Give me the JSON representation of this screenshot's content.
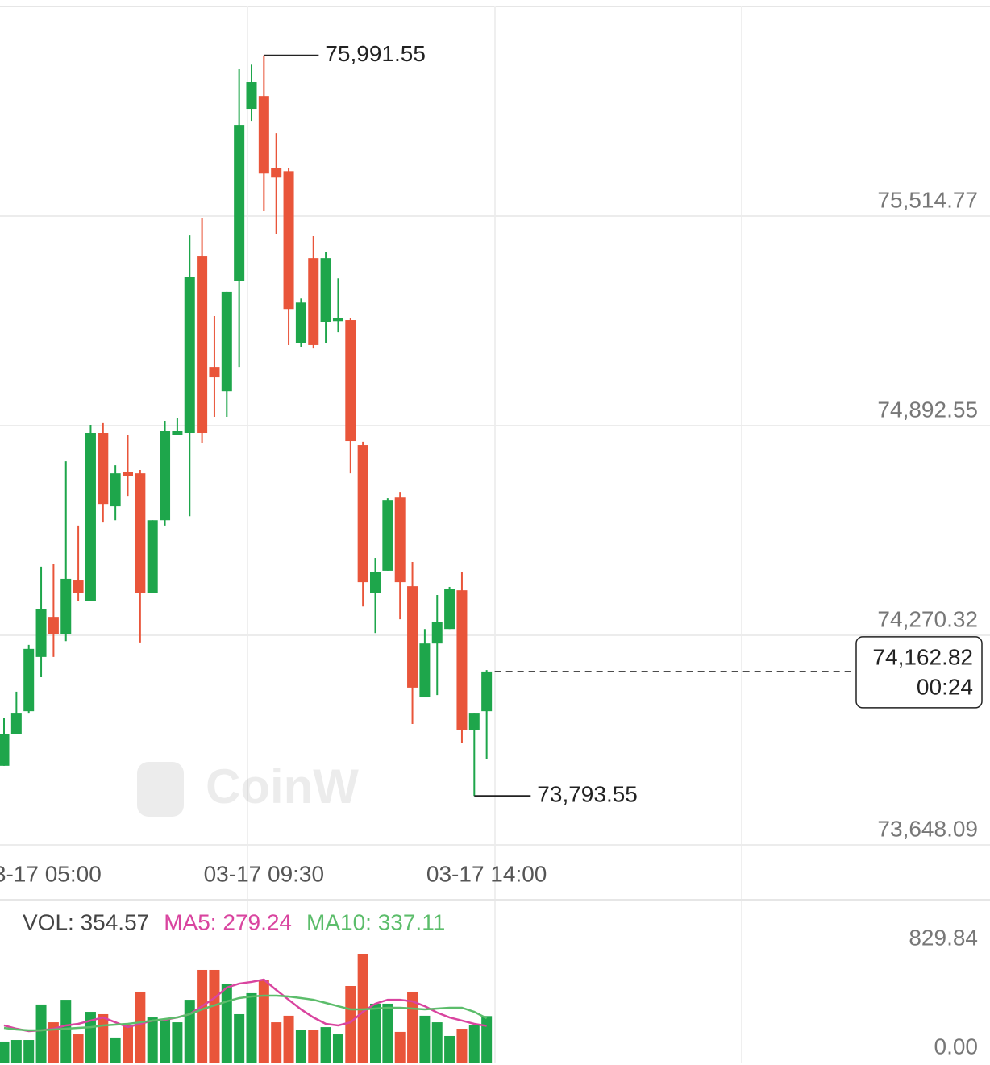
{
  "chart_data": [
    {
      "type": "candlestick",
      "categories": [
        null,
        null,
        null,
        "03-17 05:00",
        null,
        null,
        null,
        null,
        null,
        null,
        null,
        null,
        null,
        null,
        null,
        null,
        null,
        null,
        null,
        null,
        null,
        "03-17 09:30",
        null,
        null,
        null,
        null,
        null,
        null,
        null,
        null,
        null,
        null,
        null,
        null,
        null,
        null,
        null,
        null,
        null,
        "03-17 14:00"
      ],
      "open": [
        73883,
        73978,
        74045,
        74206,
        74325,
        74273,
        74433,
        74373,
        74871,
        74653,
        74756,
        74751,
        74397,
        74612,
        74864,
        74871,
        75395,
        75067,
        74995,
        75323,
        75833,
        75871,
        75658,
        75648,
        75139,
        75390,
        75199,
        75203,
        75206,
        74835,
        74397,
        74462,
        74679,
        74416,
        74086,
        74246,
        74289,
        74404,
        73990,
        74045
      ],
      "high": [
        74026,
        74103,
        74242,
        74474,
        74481,
        74787,
        74596,
        74895,
        74900,
        74775,
        74864,
        74761,
        74612,
        74907,
        74916,
        75457,
        75510,
        75218,
        75290,
        75952,
        75964,
        75991.55,
        75761,
        75658,
        75270,
        75455,
        75409,
        75330,
        75211,
        74845,
        74500,
        74677,
        74696,
        74488,
        74289,
        74390,
        74414,
        74457,
        74038,
        74167
      ],
      "low": [
        73883,
        73978,
        74038,
        74146,
        74206,
        74253,
        74373,
        74373,
        74605,
        74612,
        74684,
        74249,
        74397,
        74596,
        74864,
        74624,
        74840,
        74919,
        74919,
        75067,
        75797,
        75529,
        75462,
        75132,
        75127,
        75122,
        75139,
        75170,
        74751,
        74356,
        74277,
        74462,
        74318,
        74007,
        74086,
        74093,
        74289,
        73950,
        73793.55,
        73902
      ],
      "close": [
        73978,
        74038,
        74230,
        74349,
        74273,
        74438,
        74397,
        74871,
        74660,
        74751,
        74744,
        74397,
        74612,
        74876,
        74876,
        75335,
        74871,
        75036,
        75290,
        75785,
        75912,
        75641,
        75629,
        75239,
        75258,
        75132,
        75390,
        75211,
        74847,
        74428,
        74457,
        74672,
        74428,
        74115,
        74246,
        74309,
        74409,
        73990,
        74038,
        74162.82
      ],
      "up_color": "#1ea64b",
      "down_color": "#e9553a",
      "ylim": [
        73648.09,
        76132.23
      ],
      "yticks": [
        {
          "value": 75514.77,
          "label": "75,514.77"
        },
        {
          "value": 74892.55,
          "label": "74,892.55"
        },
        {
          "value": 74270.32,
          "label": "74,270.32"
        },
        {
          "value": 73648.09,
          "label": "73,648.09"
        }
      ],
      "grid": true,
      "high_marker": {
        "value": 75991.55,
        "label": "75,991.55"
      },
      "low_marker": {
        "value": 73793.55,
        "label": "73,793.55"
      },
      "last_price": {
        "value": 74162.82,
        "label": "74,162.82"
      },
      "countdown": "00:24",
      "watermark": "CoinW"
    },
    {
      "type": "bar",
      "ylim": [
        0,
        829.84
      ],
      "yticks": [
        {
          "value": 829.84,
          "label": "829.84"
        },
        {
          "value": 0,
          "label": "0.00"
        }
      ],
      "series": [
        {
          "name": "VOL: 354.57",
          "color": "#444444",
          "values": [
            160,
            172,
            172,
            443,
            307,
            479,
            215,
            387,
            369,
            191,
            283,
            541,
            344,
            326,
            307,
            479,
            707,
            707,
            602,
            369,
            529,
            633,
            307,
            357,
            246,
            252,
            270,
            215,
            584,
            829.84,
            449,
            449,
            234,
            541,
            357,
            307,
            203,
            258,
            283,
            354.57
          ]
        },
        {
          "name": "MA5: 279.24",
          "color": "#d9449f",
          "values": [
            283,
            258,
            240,
            246,
            258,
            283,
            295,
            320,
            344,
            307,
            270,
            295,
            320,
            326,
            344,
            369,
            430,
            492,
            572,
            602,
            615,
            633,
            553,
            479,
            406,
            344,
            295,
            283,
            307,
            387,
            449,
            479,
            479,
            467,
            430,
            381,
            344,
            320,
            295,
            279.24
          ]
        },
        {
          "name": "MA10: 337.11",
          "color": "#5cbd6b",
          "values": [
            264,
            252,
            246,
            246,
            252,
            258,
            264,
            270,
            283,
            289,
            295,
            307,
            320,
            332,
            344,
            369,
            406,
            436,
            467,
            492,
            504,
            510,
            510,
            504,
            492,
            479,
            455,
            430,
            406,
            406,
            412,
            418,
            418,
            412,
            406,
            412,
            418,
            418,
            387,
            337.11
          ]
        }
      ]
    }
  ]
}
